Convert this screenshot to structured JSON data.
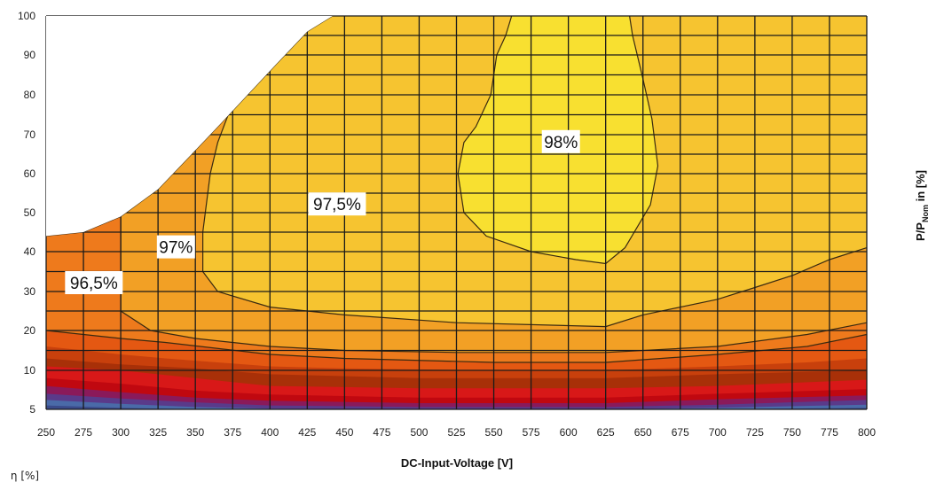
{
  "chart_data": {
    "type": "contour",
    "xlabel": "DC-Input-Voltage [V]",
    "ylabel": "P/P",
    "ylabel_subscript": "Nom",
    "ylabel_unit": " in [%]",
    "zlabel": "η [%]",
    "x_ticks": [
      250,
      275,
      300,
      325,
      350,
      375,
      400,
      425,
      450,
      475,
      500,
      525,
      550,
      575,
      600,
      625,
      650,
      675,
      700,
      725,
      750,
      775,
      800
    ],
    "y_ticks": [
      5,
      10,
      20,
      30,
      40,
      50,
      60,
      70,
      80,
      90,
      100
    ],
    "xlim": [
      250,
      800
    ],
    "ylim": [
      5,
      100
    ],
    "grid": true,
    "contour_labels": [
      {
        "text": "96,5%",
        "x": 282,
        "y": 32
      },
      {
        "text": "97%",
        "x": 337,
        "y": 41
      },
      {
        "text": "97,5%",
        "x": 445,
        "y": 52
      },
      {
        "text": "98%",
        "x": 595,
        "y": 68
      }
    ],
    "colors": {
      "98": "#f8e030",
      "97.5": "#f6c430",
      "97": "#f2a025",
      "96.5": "#ee7a1c",
      "96": "#e45812",
      "95": "#c8400c",
      "94": "#a83008",
      "92": "#d81818",
      "90": "#c00810",
      "85": "#8a1a5a",
      "80": "#5a3a8a",
      "75": "#4a6aa8",
      "70": "#3a4a8a",
      "grid": "#1a1a1a"
    }
  }
}
